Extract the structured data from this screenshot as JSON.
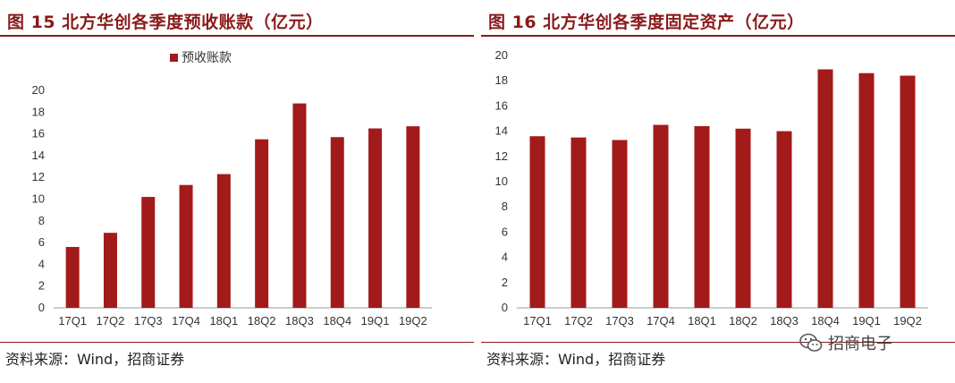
{
  "colors": {
    "bar": "#a31a1a",
    "title": "#8b1a1a",
    "axis": "#999999"
  },
  "left": {
    "title": "图 15  北方华创各季度预收账款（亿元）",
    "source": "资料来源：Wind，招商证券"
  },
  "right": {
    "title": "图 16  北方华创各季度固定资产（亿元）",
    "source": "资料来源：Wind，招商证券",
    "watermark": "招商电子",
    "watermark_icon": "wechat-icon"
  },
  "chart_data": [
    {
      "type": "bar",
      "title": "北方华创各季度预收账款（亿元）",
      "categories": [
        "17Q1",
        "17Q2",
        "17Q3",
        "17Q4",
        "18Q1",
        "18Q2",
        "18Q3",
        "18Q4",
        "19Q1",
        "19Q2"
      ],
      "series": [
        {
          "name": "预收账款",
          "values": [
            5.6,
            6.9,
            10.2,
            11.3,
            12.3,
            15.5,
            18.8,
            15.7,
            16.5,
            16.7
          ]
        }
      ],
      "ylim": [
        0,
        20
      ],
      "yticks": [
        0,
        2,
        4,
        6,
        8,
        10,
        12,
        14,
        16,
        18,
        20
      ],
      "legend": "top-center",
      "grid": false
    },
    {
      "type": "bar",
      "title": "北方华创各季度固定资产（亿元）",
      "categories": [
        "17Q1",
        "17Q2",
        "17Q3",
        "17Q4",
        "18Q1",
        "18Q2",
        "18Q3",
        "18Q4",
        "19Q1",
        "19Q2"
      ],
      "series": [
        {
          "values": [
            13.6,
            13.5,
            13.3,
            14.5,
            14.4,
            14.2,
            14.0,
            18.9,
            18.6,
            18.4
          ]
        }
      ],
      "ylim": [
        0,
        20
      ],
      "yticks": [
        0,
        2,
        4,
        6,
        8,
        10,
        12,
        14,
        16,
        18,
        20
      ],
      "legend": "none",
      "grid": false
    }
  ]
}
